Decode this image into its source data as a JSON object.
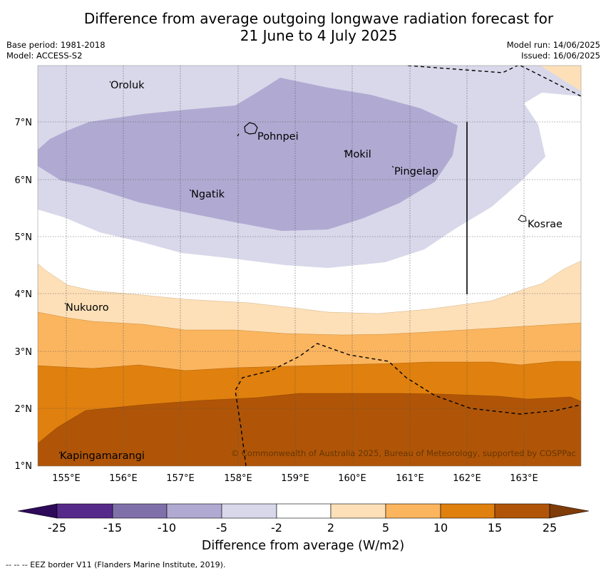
{
  "title_line1": "Difference from average outgoing longwave radiation forecast for",
  "title_line2": "21 June to 4 July 2025",
  "base_period": "Base period: 1981-2018",
  "model": "Model: ACCESS-S2",
  "model_run": "Model run: 14/06/2025",
  "issued": "Issued: 16/06/2025",
  "places": {
    "oroluk": "Oroluk",
    "pohnpei": "Pohnpei",
    "mokil": "Mokil",
    "pingelap": "Pingelap",
    "ngatik": "Ngatik",
    "kosrae": "Kosrae",
    "nukuoro": "Nukuoro",
    "kapingamarangi": "Kapingamarangi"
  },
  "axes": {
    "x_ticks": [
      "155°E",
      "156°E",
      "157°E",
      "158°E",
      "159°E",
      "160°E",
      "161°E",
      "162°E",
      "163°E"
    ],
    "y_ticks": [
      "7°N",
      "6°N",
      "5°N",
      "4°N",
      "3°N",
      "2°N",
      "1°N"
    ],
    "x_range_deg": [
      154.5,
      164
    ],
    "y_range_deg": [
      1,
      7.8
    ]
  },
  "copyright": "© Commonwealth of Australia 2025, Bureau of Meteorology, supported by COSPPac",
  "colorbar": {
    "ticks": [
      "-25",
      "-15",
      "-10",
      "-5",
      "-2",
      "2",
      "5",
      "10",
      "15",
      "25"
    ],
    "colors": [
      "#2d0a5a",
      "#552a8a",
      "#8070aa",
      "#b0aad2",
      "#d8d8ea",
      "#ffffff",
      "#fde0b8",
      "#fbb55f",
      "#e0800e",
      "#b05507",
      "#7f3b08"
    ],
    "title": "Difference from average (W/m2)"
  },
  "footnote": "--  --  -- EEZ border V11 (Flanders Marine Institute, 2019)."
}
